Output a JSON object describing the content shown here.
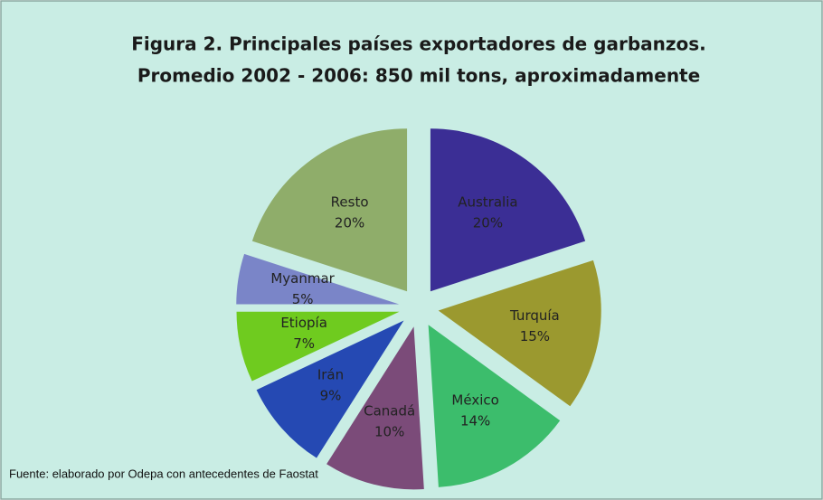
{
  "chart_data": {
    "type": "pie",
    "title": "Figura 2.  Principales países exportadores de garbanzos.",
    "subtitle": "Promedio 2002 - 2006:  850 mil tons, aproximadamente",
    "categories": [
      "Australia",
      "Turquía",
      "México",
      "Canadá",
      "Irán",
      "Etiopía",
      "Myanmar",
      "Resto"
    ],
    "values": [
      20,
      15,
      14,
      10,
      9,
      7,
      5,
      20
    ],
    "value_labels": [
      "20%",
      "15%",
      "14%",
      "10%",
      "9%",
      "7%",
      "5%",
      "20%"
    ],
    "colors": [
      "#3b2e95",
      "#9b992f",
      "#3cbd6c",
      "#7b4b79",
      "#2549b3",
      "#6fcb1f",
      "#7a85c8",
      "#8fad6a"
    ],
    "source": "Fuente: elaborado por Odepa con antecedentes de Faostat"
  }
}
